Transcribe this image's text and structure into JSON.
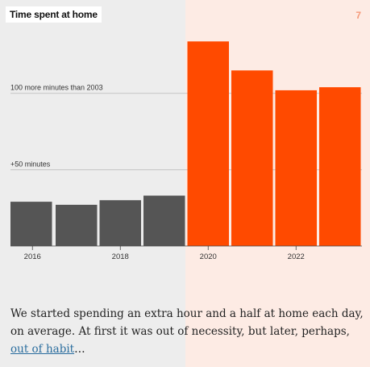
{
  "header": {
    "title": "Time spent at home",
    "slide_number": "7"
  },
  "chart_data": {
    "type": "bar",
    "title": "Time spent at home",
    "categories": [
      "2016",
      "2017",
      "2018",
      "2019",
      "2020",
      "2021",
      "2022",
      "2023"
    ],
    "values": [
      29,
      27,
      30,
      33,
      134,
      115,
      102,
      104
    ],
    "series_colors": [
      "#555555",
      "#555555",
      "#555555",
      "#555555",
      "#ff4a00",
      "#ff4a00",
      "#ff4a00",
      "#ff4a00"
    ],
    "gridlines": [
      {
        "value": 50,
        "label": "+50 minutes"
      },
      {
        "value": 100,
        "label": "100 more minutes than 2003"
      }
    ],
    "xtick_labels": [
      "2016",
      "2018",
      "2020",
      "2022"
    ],
    "ylim": [
      0,
      140
    ],
    "xlabel": "",
    "ylabel": "",
    "highlight_start": "2020"
  },
  "caption": {
    "text": "We started spending an extra hour and a half at home each day, on average. At first it was out of necessity, but later, perhaps, ",
    "link_text": "out of habit",
    "suffix": "…"
  }
}
